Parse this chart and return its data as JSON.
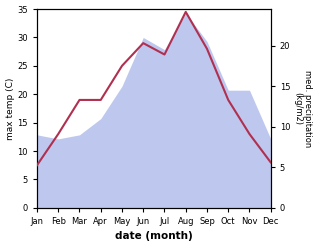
{
  "months": [
    "Jan",
    "Feb",
    "Mar",
    "Apr",
    "May",
    "Jun",
    "Jul",
    "Aug",
    "Sep",
    "Oct",
    "Nov",
    "Dec"
  ],
  "max_temp": [
    7.5,
    13.0,
    19.0,
    19.0,
    25.0,
    29.0,
    27.0,
    34.5,
    28.0,
    19.0,
    13.0,
    8.0
  ],
  "precipitation": [
    9.0,
    8.5,
    9.0,
    11.0,
    15.0,
    21.0,
    19.5,
    24.0,
    20.5,
    14.5,
    14.5,
    8.5
  ],
  "temp_color": "#b03050",
  "precip_fill_color": "#bec8ef",
  "temp_ylim": [
    0,
    35
  ],
  "precip_ylim": [
    0,
    24.5
  ],
  "ylabel_left": "max temp (C)",
  "ylabel_right": "med. precipitation\n(kg/m2)",
  "xlabel": "date (month)",
  "temp_yticks": [
    0,
    5,
    10,
    15,
    20,
    25,
    30,
    35
  ],
  "precip_yticks": [
    0,
    5,
    10,
    15,
    20
  ],
  "background_color": "#ffffff"
}
